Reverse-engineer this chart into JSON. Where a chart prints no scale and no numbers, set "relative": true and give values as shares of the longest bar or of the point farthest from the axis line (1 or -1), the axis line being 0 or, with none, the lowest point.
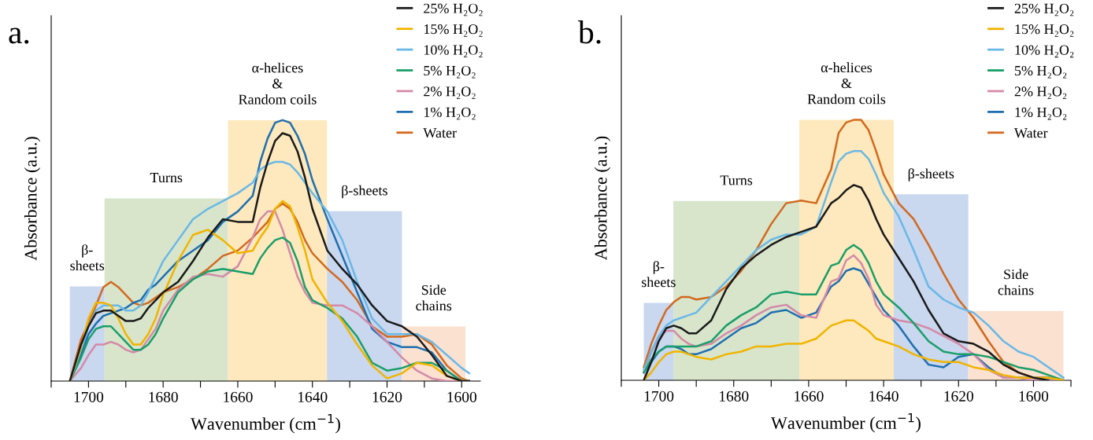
{
  "chart_data": [
    {
      "type": "line",
      "title": "a.",
      "xlabel": "Wavenumber (cm$^{−1}$)",
      "ylabel": "Absorbance (a.u.)",
      "relative": true,
      "legend": "top right",
      "grid": false,
      "xlim": [
        1710,
        1595
      ],
      "xticks": [
        {
          "value": 1710,
          "label": null
        },
        1700,
        {
          "value": 1690,
          "label": null
        },
        1680,
        {
          "value": 1670,
          "label": null
        },
        1660,
        {
          "value": 1650,
          "label": null
        },
        1640,
        {
          "value": 1630,
          "label": null
        },
        1620,
        {
          "value": 1610,
          "label": null
        },
        1600
      ],
      "x": [
        1705,
        1702,
        1700,
        1698,
        1696,
        1694,
        1692,
        1690,
        1688,
        1686,
        1684,
        1682,
        1680,
        1676,
        1672,
        1668,
        1664,
        1660,
        1656,
        1654,
        1652,
        1650,
        1648,
        1646,
        1644,
        1642,
        1640,
        1636,
        1632,
        1628,
        1624,
        1620,
        1616,
        1612,
        1608,
        1604,
        1600,
        1598
      ],
      "bands": [
        {
          "axis": "x",
          "from": 1705,
          "to": 1695.7,
          "label": "β-\nsheets",
          "color": "#c9d7ef"
        },
        {
          "axis": "x",
          "from": 1695.7,
          "to": 1662.6,
          "label": "Turns",
          "color": "#d8e5cb"
        },
        {
          "axis": "x",
          "from": 1662.6,
          "to": 1636.1,
          "label": "α-helices\n&\nRandom coils",
          "color": "#fde9bd"
        },
        {
          "axis": "x",
          "from": 1636.1,
          "to": 1616,
          "label": "β-sheets",
          "color": "#c9d7ef"
        },
        {
          "axis": "x",
          "from": 1616,
          "to": 1599,
          "label": "Side\nchains",
          "color": "#fbe1d0"
        }
      ],
      "series": [
        {
          "name": "25% H₂O₂",
          "color": "#1a1a1a",
          "values": [
            0,
            0.14,
            0.21,
            0.26,
            0.27,
            0.27,
            0.25,
            0.23,
            0.23,
            0.24,
            0.28,
            0.31,
            0.34,
            0.38,
            0.46,
            0.55,
            0.62,
            0.61,
            0.61,
            0.74,
            0.84,
            0.92,
            0.95,
            0.94,
            0.88,
            0.78,
            0.66,
            0.5,
            0.43,
            0.37,
            0.29,
            0.23,
            0.21,
            0.17,
            0.1,
            0.02,
            0,
            0
          ]
        },
        {
          "name": "15% H₂O₂",
          "color": "#f0b400",
          "values": [
            0,
            0.13,
            0.24,
            0.3,
            0.3,
            0.29,
            0.24,
            0.18,
            0.14,
            0.14,
            0.18,
            0.24,
            0.33,
            0.46,
            0.56,
            0.58,
            0.54,
            0.49,
            0.5,
            0.55,
            0.59,
            0.66,
            0.69,
            0.67,
            0.59,
            0.5,
            0.39,
            0.3,
            0.23,
            0.14,
            0.06,
            0.01,
            0.03,
            0.07,
            0.06,
            0.02,
            0,
            0
          ]
        },
        {
          "name": "10% H₂O₂",
          "color": "#6ab8e6",
          "values": [
            0,
            0.12,
            0.21,
            0.27,
            0.29,
            0.29,
            0.29,
            0.27,
            0.27,
            0.29,
            0.34,
            0.4,
            0.46,
            0.54,
            0.62,
            0.66,
            0.69,
            0.72,
            0.76,
            0.81,
            0.83,
            0.84,
            0.84,
            0.83,
            0.8,
            0.76,
            0.72,
            0.65,
            0.54,
            0.38,
            0.24,
            0.18,
            0.18,
            0.18,
            0.15,
            0.1,
            0.05,
            0.03
          ]
        },
        {
          "name": "5% H₂O₂",
          "color": "#1a9e6a",
          "values": [
            0,
            0.09,
            0.16,
            0.2,
            0.21,
            0.21,
            0.18,
            0.15,
            0.12,
            0.12,
            0.14,
            0.18,
            0.24,
            0.34,
            0.39,
            0.42,
            0.43,
            0.42,
            0.41,
            0.47,
            0.51,
            0.54,
            0.55,
            0.53,
            0.46,
            0.36,
            0.31,
            0.28,
            0.24,
            0.17,
            0.07,
            0.04,
            0.05,
            0.07,
            0.07,
            0.04,
            0,
            0
          ]
        },
        {
          "name": "2% H₂O₂",
          "color": "#d48aa8",
          "values": [
            0,
            0.05,
            0.1,
            0.14,
            0.14,
            0.15,
            0.14,
            0.12,
            0.11,
            0.12,
            0.16,
            0.2,
            0.27,
            0.35,
            0.4,
            0.41,
            0.4,
            0.44,
            0.55,
            0.62,
            0.65,
            0.65,
            0.58,
            0.49,
            0.4,
            0.34,
            0.3,
            0.29,
            0.29,
            0.26,
            0.21,
            0.15,
            0.09,
            0.04,
            0.01,
            0,
            0,
            0
          ]
        },
        {
          "name": "1% H₂O₂",
          "color": "#1f6fb0",
          "values": [
            0,
            0.1,
            0.18,
            0.22,
            0.25,
            0.26,
            0.27,
            0.28,
            0.3,
            0.31,
            0.35,
            0.37,
            0.4,
            0.46,
            0.5,
            0.54,
            0.61,
            0.65,
            0.71,
            0.84,
            0.93,
            0.99,
            1.0,
            0.99,
            0.94,
            0.87,
            0.77,
            0.62,
            0.48,
            0.34,
            0.2,
            0.15,
            0.13,
            0.13,
            0.11,
            0.04,
            0,
            0
          ]
        },
        {
          "name": "Water",
          "color": "#d2691e",
          "values": [
            0,
            0.16,
            0.22,
            0.29,
            0.36,
            0.38,
            0.36,
            0.33,
            0.3,
            0.29,
            0.3,
            0.32,
            0.34,
            0.36,
            0.39,
            0.43,
            0.48,
            0.5,
            0.55,
            0.58,
            0.61,
            0.66,
            0.68,
            0.66,
            0.61,
            0.54,
            0.49,
            0.43,
            0.38,
            0.31,
            0.21,
            0.17,
            0.17,
            0.18,
            0.14,
            0.06,
            0.01,
            0
          ]
        }
      ]
    },
    {
      "type": "line",
      "title": "b.",
      "xlabel": "Wavenumber (cm$^{−1}$)",
      "ylabel": "Absorbance (a.u.)",
      "relative": true,
      "legend": "top right",
      "grid": false,
      "xlim": [
        1710,
        1590
      ],
      "xticks": [
        {
          "value": 1710,
          "label": null
        },
        1700,
        {
          "value": 1690,
          "label": null
        },
        1680,
        {
          "value": 1670,
          "label": null
        },
        1660,
        {
          "value": 1650,
          "label": null
        },
        1640,
        {
          "value": 1630,
          "label": null
        },
        1620,
        {
          "value": 1610,
          "label": null
        },
        1600,
        {
          "value": 1590,
          "label": null
        }
      ],
      "x": [
        1704,
        1702,
        1700,
        1698,
        1696,
        1694,
        1692,
        1690,
        1686,
        1682,
        1678,
        1674,
        1670,
        1666,
        1662,
        1658,
        1654,
        1652,
        1650,
        1648,
        1646,
        1644,
        1642,
        1640,
        1636,
        1632,
        1628,
        1624,
        1620,
        1616,
        1612,
        1608,
        1604,
        1600,
        1596,
        1592
      ],
      "bands": [
        {
          "axis": "x",
          "from": 1704,
          "to": 1696.1,
          "label": "β-\nsheets",
          "color": "#c9d7ef"
        },
        {
          "axis": "x",
          "from": 1696.1,
          "to": 1662.5,
          "label": "Turns",
          "color": "#d8e5cb"
        },
        {
          "axis": "x",
          "from": 1662.5,
          "to": 1637.3,
          "label": "α-helices\n&\nRandom coils",
          "color": "#fde9bd"
        },
        {
          "axis": "x",
          "from": 1637.3,
          "to": 1617.4,
          "label": "β-sheets",
          "color": "#c9d7ef"
        },
        {
          "axis": "x",
          "from": 1617.4,
          "to": 1592,
          "label": "Side\nchains",
          "color": "#fbe1d0"
        }
      ],
      "series": [
        {
          "name": "25% H₂O₂",
          "color": "#1a1a1a",
          "values": [
            0,
            0.07,
            0.15,
            0.2,
            0.21,
            0.2,
            0.18,
            0.18,
            0.23,
            0.35,
            0.43,
            0.48,
            0.52,
            0.55,
            0.57,
            0.59,
            0.68,
            0.7,
            0.73,
            0.75,
            0.74,
            0.69,
            0.62,
            0.56,
            0.47,
            0.38,
            0.27,
            0.18,
            0.15,
            0.14,
            0.11,
            0.06,
            0.03,
            0.01,
            0,
            null
          ]
        },
        {
          "name": "15% H₂O₂",
          "color": "#f0b400",
          "values": [
            0,
            0.03,
            0.07,
            0.1,
            0.11,
            0.11,
            0.1,
            0.09,
            0.08,
            0.1,
            0.11,
            0.13,
            0.13,
            0.14,
            0.14,
            0.16,
            0.21,
            0.22,
            0.23,
            0.23,
            0.21,
            0.19,
            0.16,
            0.15,
            0.13,
            0.1,
            0.08,
            0.07,
            0.07,
            0.05,
            0.04,
            0.02,
            0.01,
            0.01,
            0.01,
            0
          ]
        },
        {
          "name": "10% H₂O₂",
          "color": "#6ab8e6",
          "values": [
            0.04,
            0.11,
            0.17,
            0.21,
            0.23,
            0.24,
            0.25,
            0.26,
            0.32,
            0.38,
            0.44,
            0.5,
            0.54,
            0.56,
            0.56,
            0.59,
            0.76,
            0.84,
            0.87,
            0.88,
            0.88,
            0.85,
            0.79,
            0.72,
            0.63,
            0.5,
            0.36,
            0.31,
            0.28,
            0.26,
            0.21,
            0.15,
            0.11,
            0.09,
            0.05,
            0.01
          ]
        },
        {
          "name": "5% H₂O₂",
          "color": "#1a9e6a",
          "values": [
            0.03,
            0.08,
            0.11,
            0.13,
            0.13,
            0.13,
            0.13,
            0.13,
            0.15,
            0.21,
            0.25,
            0.28,
            0.33,
            0.34,
            0.33,
            0.33,
            0.44,
            0.45,
            0.5,
            0.52,
            0.5,
            0.45,
            0.38,
            0.33,
            0.28,
            0.22,
            0.15,
            0.11,
            0.1,
            0.1,
            0.09,
            0.07,
            0.05,
            0.04,
            0.02,
            0
          ]
        },
        {
          "name": "2% H₂O₂",
          "color": "#d48aa8",
          "values": [
            0.03,
            0.11,
            0.16,
            0.19,
            0.19,
            0.16,
            0.14,
            0.13,
            0.14,
            0.18,
            0.21,
            0.25,
            0.28,
            0.29,
            0.25,
            0.24,
            0.38,
            0.39,
            0.46,
            0.48,
            0.45,
            0.39,
            0.29,
            0.25,
            0.23,
            0.22,
            0.2,
            0.17,
            0.14,
            0.1,
            0.04,
            0.01,
            0.01,
            0,
            0,
            0
          ]
        },
        {
          "name": "1% H₂O₂",
          "color": "#1f6fb0",
          "values": [
            0.03,
            0.07,
            0.11,
            0.13,
            0.13,
            0.12,
            0.1,
            0.1,
            0.12,
            0.16,
            0.2,
            0.22,
            0.26,
            0.27,
            0.24,
            0.26,
            0.36,
            0.38,
            0.42,
            0.43,
            0.42,
            0.37,
            0.32,
            0.27,
            0.21,
            0.13,
            0.06,
            0.05,
            0.09,
            0.1,
            0.05,
            0.01,
            0.01,
            0.01,
            0.01,
            0
          ]
        },
        {
          "name": "Water",
          "color": "#d2691e",
          "values": [
            0.05,
            0.14,
            0.21,
            0.27,
            0.3,
            0.32,
            0.32,
            0.31,
            0.32,
            0.36,
            0.42,
            0.5,
            0.6,
            0.68,
            0.69,
            0.68,
            0.81,
            0.95,
            0.99,
            1.0,
            1.0,
            0.96,
            0.88,
            0.79,
            0.68,
            0.62,
            0.52,
            0.41,
            0.31,
            0.24,
            0.15,
            0.07,
            0.03,
            0.01,
            0.01,
            0
          ]
        }
      ]
    }
  ]
}
